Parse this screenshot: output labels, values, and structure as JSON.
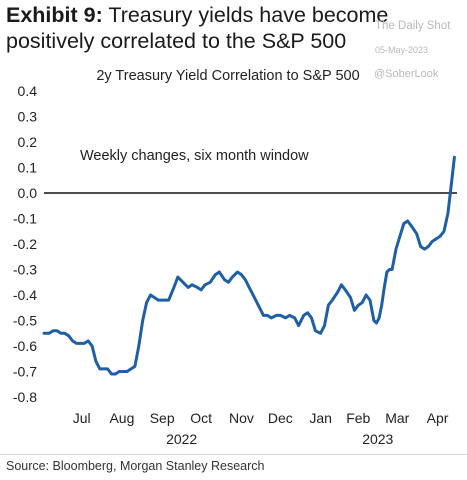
{
  "header": {
    "label": "Exhibit 9:",
    "text": "Treasury yields have become positively correlated to the S&P 500"
  },
  "watermark": {
    "brand": "The Daily Shot",
    "date": "05-May-2023",
    "handle": "@SoberLook"
  },
  "source": "Source: Bloomberg, Morgan Stanley Research",
  "chart_data": {
    "type": "line",
    "title": "2y Treasury Yield Correlation to S&P 500",
    "annotation": "Weekly changes, six month window",
    "xlabel": "",
    "ylabel": "",
    "ylim": [
      -0.8,
      0.4
    ],
    "yticks": [
      0.4,
      0.3,
      0.2,
      0.1,
      0.0,
      -0.1,
      -0.2,
      -0.3,
      -0.4,
      -0.5,
      -0.6,
      -0.7,
      -0.8
    ],
    "ytick_labels": [
      "0.4",
      "0.3",
      "0.2",
      "0.1",
      "0.0",
      "-0.1",
      "-0.2",
      "-0.3",
      "-0.4",
      "-0.5",
      "-0.6",
      "-0.7",
      "-0.8"
    ],
    "xlim": [
      "2022-06-17",
      "2023-05-01"
    ],
    "months": [
      {
        "label": "Jul",
        "date": "2022-07-16"
      },
      {
        "label": "Aug",
        "date": "2022-08-16"
      },
      {
        "label": "Sep",
        "date": "2022-09-16"
      },
      {
        "label": "Oct",
        "date": "2022-10-16"
      },
      {
        "label": "Nov",
        "date": "2022-11-16"
      },
      {
        "label": "Dec",
        "date": "2022-12-16"
      },
      {
        "label": "Jan",
        "date": "2023-01-16"
      },
      {
        "label": "Feb",
        "date": "2023-02-14"
      },
      {
        "label": "Mar",
        "date": "2023-03-16"
      },
      {
        "label": "Apr",
        "date": "2023-04-16"
      }
    ],
    "years": [
      {
        "label": "2022",
        "date": "2022-10-01"
      },
      {
        "label": "2023",
        "date": "2023-03-01"
      }
    ],
    "reference_line": 0.0,
    "grid": false,
    "legend": "none",
    "color": "#1f5fa5",
    "series": [
      {
        "x": [
          "2022-06-17",
          "2022-06-21",
          "2022-06-24",
          "2022-06-27",
          "2022-06-30",
          "2022-07-03",
          "2022-07-06",
          "2022-07-09",
          "2022-07-12",
          "2022-07-15",
          "2022-07-18",
          "2022-07-21",
          "2022-07-24",
          "2022-07-27",
          "2022-07-30",
          "2022-08-02",
          "2022-08-05",
          "2022-08-08",
          "2022-08-11",
          "2022-08-14",
          "2022-08-17",
          "2022-08-20",
          "2022-08-23",
          "2022-08-26",
          "2022-08-29",
          "2022-09-01",
          "2022-09-04",
          "2022-09-07",
          "2022-09-10",
          "2022-09-13",
          "2022-09-17",
          "2022-09-21",
          "2022-09-25",
          "2022-09-28",
          "2022-10-02",
          "2022-10-06",
          "2022-10-09",
          "2022-10-13",
          "2022-10-16",
          "2022-10-19",
          "2022-10-23",
          "2022-10-27",
          "2022-10-30",
          "2022-11-03",
          "2022-11-06",
          "2022-11-09",
          "2022-11-13",
          "2022-11-16",
          "2022-11-19",
          "2022-11-23",
          "2022-11-26",
          "2022-11-30",
          "2022-12-03",
          "2022-12-06",
          "2022-12-09",
          "2022-12-13",
          "2022-12-16",
          "2022-12-20",
          "2022-12-23",
          "2022-12-27",
          "2022-12-30",
          "2023-01-03",
          "2023-01-06",
          "2023-01-09",
          "2023-01-12",
          "2023-01-16",
          "2023-01-19",
          "2023-01-22",
          "2023-01-25",
          "2023-01-29",
          "2023-02-01",
          "2023-02-04",
          "2023-02-08",
          "2023-02-11",
          "2023-02-14",
          "2023-02-17",
          "2023-02-20",
          "2023-02-23",
          "2023-02-26",
          "2023-02-28",
          "2023-03-02",
          "2023-03-04",
          "2023-03-06",
          "2023-03-08",
          "2023-03-10",
          "2023-03-12",
          "2023-03-15",
          "2023-03-18",
          "2023-03-21",
          "2023-03-24",
          "2023-03-27",
          "2023-03-31",
          "2023-04-03",
          "2023-04-06",
          "2023-04-09",
          "2023-04-12",
          "2023-04-15",
          "2023-04-18",
          "2023-04-21",
          "2023-04-24",
          "2023-04-27",
          "2023-04-29"
        ],
        "y": [
          -0.55,
          -0.55,
          -0.54,
          -0.54,
          -0.55,
          -0.55,
          -0.56,
          -0.58,
          -0.59,
          -0.59,
          -0.59,
          -0.58,
          -0.6,
          -0.66,
          -0.69,
          -0.69,
          -0.69,
          -0.71,
          -0.71,
          -0.7,
          -0.7,
          -0.7,
          -0.69,
          -0.68,
          -0.6,
          -0.5,
          -0.43,
          -0.4,
          -0.41,
          -0.42,
          -0.42,
          -0.42,
          -0.37,
          -0.33,
          -0.35,
          -0.37,
          -0.36,
          -0.37,
          -0.38,
          -0.36,
          -0.35,
          -0.32,
          -0.31,
          -0.34,
          -0.35,
          -0.33,
          -0.31,
          -0.32,
          -0.34,
          -0.38,
          -0.41,
          -0.45,
          -0.48,
          -0.48,
          -0.49,
          -0.48,
          -0.48,
          -0.49,
          -0.48,
          -0.49,
          -0.52,
          -0.48,
          -0.47,
          -0.49,
          -0.54,
          -0.55,
          -0.52,
          -0.44,
          -0.42,
          -0.39,
          -0.36,
          -0.38,
          -0.41,
          -0.46,
          -0.44,
          -0.43,
          -0.4,
          -0.42,
          -0.5,
          -0.51,
          -0.49,
          -0.44,
          -0.37,
          -0.31,
          -0.3,
          -0.3,
          -0.22,
          -0.17,
          -0.12,
          -0.11,
          -0.13,
          -0.16,
          -0.21,
          -0.22,
          -0.21,
          -0.19,
          -0.18,
          -0.17,
          -0.15,
          -0.08,
          0.05,
          0.14
        ]
      }
    ]
  }
}
